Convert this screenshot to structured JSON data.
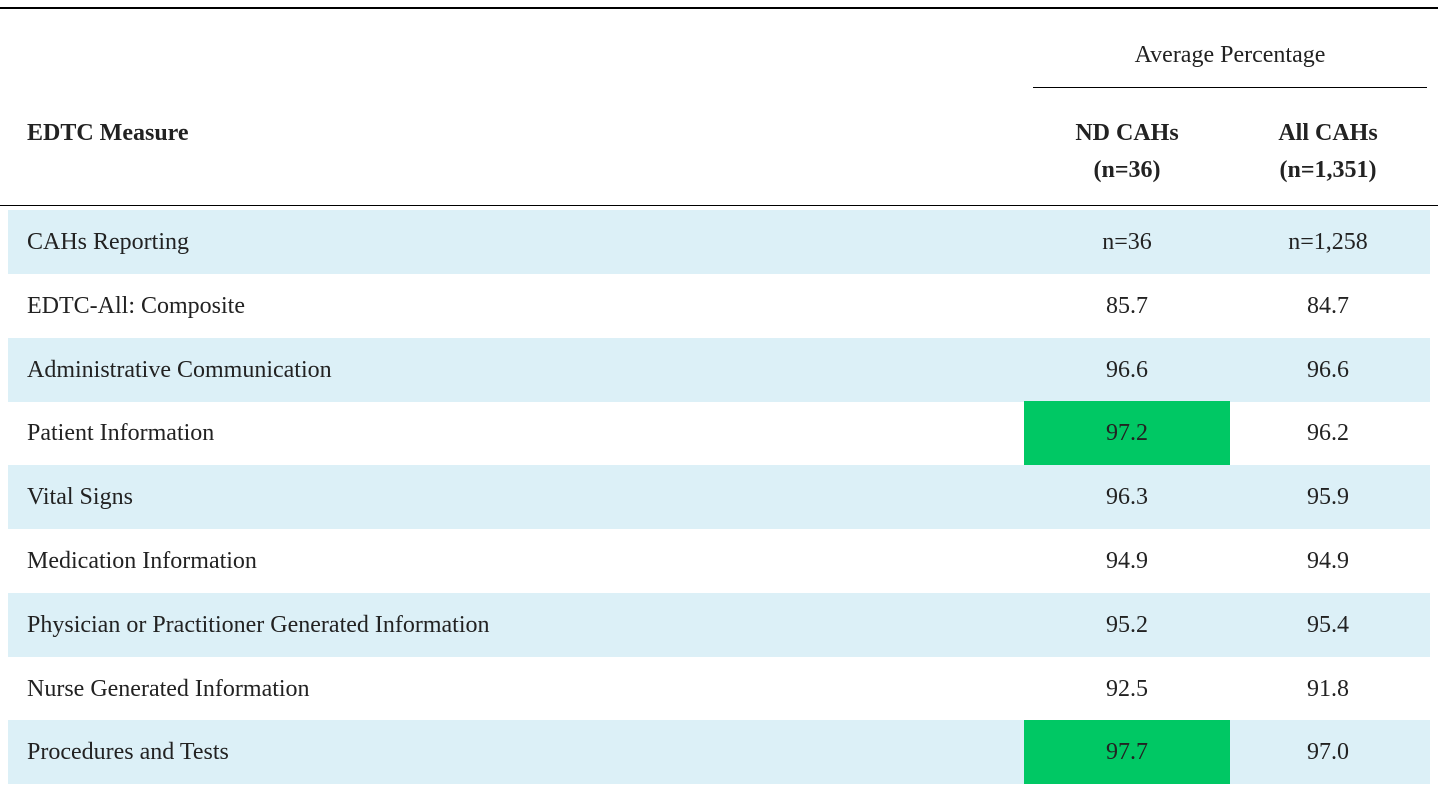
{
  "table": {
    "header": {
      "measure": "EDTC Measure",
      "group": "Average Percentage",
      "columns": [
        [
          "ND CAHs",
          "(n=36)"
        ],
        [
          "All CAHs",
          "(n=1,351)"
        ]
      ]
    },
    "stripe_color": "#dcf0f7",
    "highlight_color": "#00c864",
    "rows": [
      {
        "cells": [
          "CAHs Reporting",
          "n=36",
          "n=1,258"
        ],
        "striped": true,
        "highlight": [
          false,
          false
        ]
      },
      {
        "cells": [
          "EDTC-All: Composite",
          "85.7",
          "84.7"
        ],
        "striped": false,
        "highlight": [
          false,
          false
        ]
      },
      {
        "cells": [
          "Administrative Communication",
          "96.6",
          "96.6"
        ],
        "striped": true,
        "highlight": [
          false,
          false
        ]
      },
      {
        "cells": [
          "Patient Information",
          "97.2",
          "96.2"
        ],
        "striped": false,
        "highlight": [
          true,
          false
        ]
      },
      {
        "cells": [
          "Vital Signs",
          "96.3",
          "95.9"
        ],
        "striped": true,
        "highlight": [
          false,
          false
        ]
      },
      {
        "cells": [
          "Medication Information",
          "94.9",
          "94.9"
        ],
        "striped": false,
        "highlight": [
          false,
          false
        ]
      },
      {
        "cells": [
          "Physician or Practitioner Generated Information",
          "95.2",
          "95.4"
        ],
        "striped": true,
        "highlight": [
          false,
          false
        ]
      },
      {
        "cells": [
          "Nurse Generated Information",
          "92.5",
          "91.8"
        ],
        "striped": false,
        "highlight": [
          false,
          false
        ]
      },
      {
        "cells": [
          "Procedures and Tests",
          "97.7",
          "97.0"
        ],
        "striped": true,
        "highlight": [
          true,
          false
        ]
      }
    ]
  }
}
